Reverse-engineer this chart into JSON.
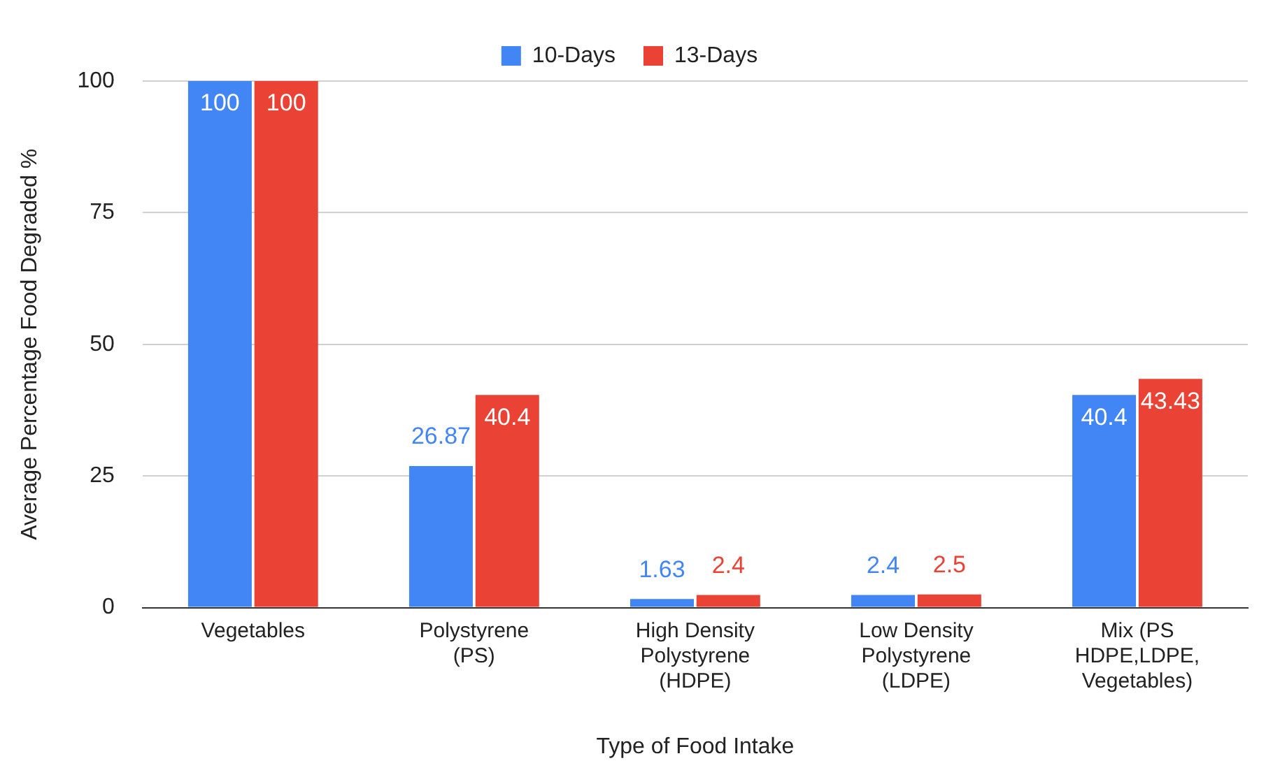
{
  "chart_data": {
    "type": "bar",
    "xlabel": "Type of Food Intake",
    "ylabel": "Average Percentage Food Degraded %",
    "categories": [
      "Vegetables",
      "Polystyrene (PS)",
      "High Density Polystyrene (HDPE)",
      "Low Density Polystyrene (LDPE)",
      "Mix (PS HDPE,LDPE, Vegetables)"
    ],
    "series": [
      {
        "name": "10-Days",
        "color": "#4285f4",
        "values": [
          100,
          26.87,
          1.63,
          2.4,
          40.4
        ]
      },
      {
        "name": "13-Days",
        "color": "#ea4335",
        "values": [
          100,
          40.4,
          2.4,
          2.5,
          43.43
        ]
      }
    ],
    "ylim": [
      0,
      100
    ],
    "yticks": [
      0,
      25,
      50,
      75,
      100
    ],
    "grid": "y",
    "legend": "top",
    "data_labels": true
  }
}
